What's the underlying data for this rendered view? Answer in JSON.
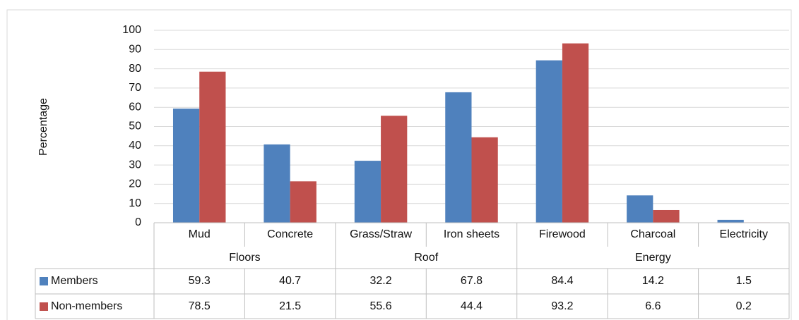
{
  "chart_data": {
    "type": "bar",
    "y_label": "Percentage",
    "categories": [
      "Mud",
      "Concrete",
      "Grass/Straw",
      "Iron sheets",
      "Firewood",
      "Charcoal",
      "Electricity"
    ],
    "category_groups": [
      "Floors",
      "Floors",
      "Roof",
      "Roof",
      "Energy",
      "Energy",
      "Energy"
    ],
    "series": [
      {
        "name": "Members",
        "color": "#4f81bd",
        "values": [
          59.3,
          40.7,
          32.2,
          67.8,
          84.4,
          14.2,
          1.5
        ]
      },
      {
        "name": "Non-members",
        "color": "#c0504d",
        "values": [
          78.5,
          21.5,
          55.6,
          44.4,
          93.2,
          6.6,
          0.2
        ]
      }
    ],
    "ylim": [
      0,
      100
    ],
    "yticks": [
      0,
      10,
      20,
      30,
      40,
      50,
      60,
      70,
      80,
      90,
      100
    ],
    "grid": true,
    "data_table": true
  }
}
